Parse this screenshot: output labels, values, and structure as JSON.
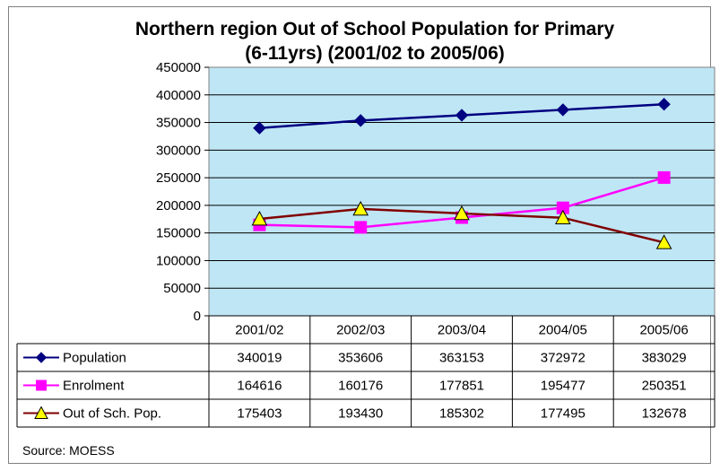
{
  "chart_data": {
    "type": "line",
    "title_line1": "Northern region Out of School Population for Primary",
    "title_line2": "(6-11yrs) (2001/02 to 2005/06)",
    "categories": [
      "2001/02",
      "2002/03",
      "2003/04",
      "2004/05",
      "2005/06"
    ],
    "ylim": [
      0,
      450000
    ],
    "yticks": [
      "0",
      "50000",
      "100000",
      "150000",
      "200000",
      "250000",
      "300000",
      "350000",
      "400000",
      "450000"
    ],
    "grid": true,
    "legend_placement": "data-table-left",
    "plot_background": "#bfe6f5",
    "series": [
      {
        "name": "Population",
        "color": "#000080",
        "marker": "diamond",
        "values": [
          340019,
          353606,
          363153,
          372972,
          383029
        ],
        "labels": [
          "340019",
          "353606",
          "363153",
          "372972",
          "383029"
        ]
      },
      {
        "name": "Enrolment",
        "color": "#ff00ff",
        "marker": "square",
        "values": [
          164616,
          160176,
          177851,
          195477,
          250351
        ],
        "labels": [
          "164616",
          "160176",
          "177851",
          "195477",
          "250351"
        ]
      },
      {
        "name": "Out of Sch. Pop.",
        "color": "#800000",
        "marker": "triangle",
        "marker_fill": "#ffff00",
        "values": [
          175403,
          193430,
          185302,
          177495,
          132678
        ],
        "labels": [
          "175403",
          "193430",
          "185302",
          "177495",
          "132678"
        ]
      }
    ],
    "source": "Source: MOESS"
  }
}
